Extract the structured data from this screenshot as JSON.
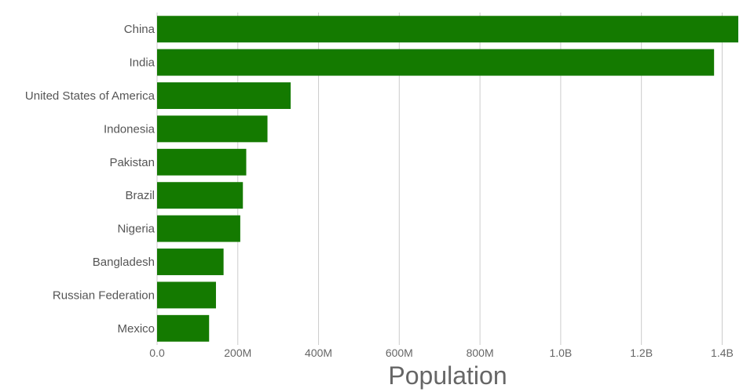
{
  "chart_data": {
    "type": "bar",
    "orientation": "horizontal",
    "title": "",
    "xlabel": "Population",
    "ylabel": "",
    "categories": [
      "China",
      "India",
      "United States of America",
      "Indonesia",
      "Pakistan",
      "Brazil",
      "Nigeria",
      "Bangladesh",
      "Russian Federation",
      "Mexico"
    ],
    "values": [
      1440000000,
      1380000000,
      331000000,
      273500000,
      220900000,
      212600000,
      206100000,
      164700000,
      145900000,
      128900000
    ],
    "xlim": [
      0,
      1440000000
    ],
    "xticks": [
      0,
      200000000,
      400000000,
      600000000,
      800000000,
      1000000000,
      1200000000,
      1400000000
    ],
    "xtick_labels": [
      "0.0",
      "200M",
      "400M",
      "600M",
      "800M",
      "1.0B",
      "1.2B",
      "1.4B"
    ],
    "grid": true,
    "bar_color": "#147a00"
  }
}
